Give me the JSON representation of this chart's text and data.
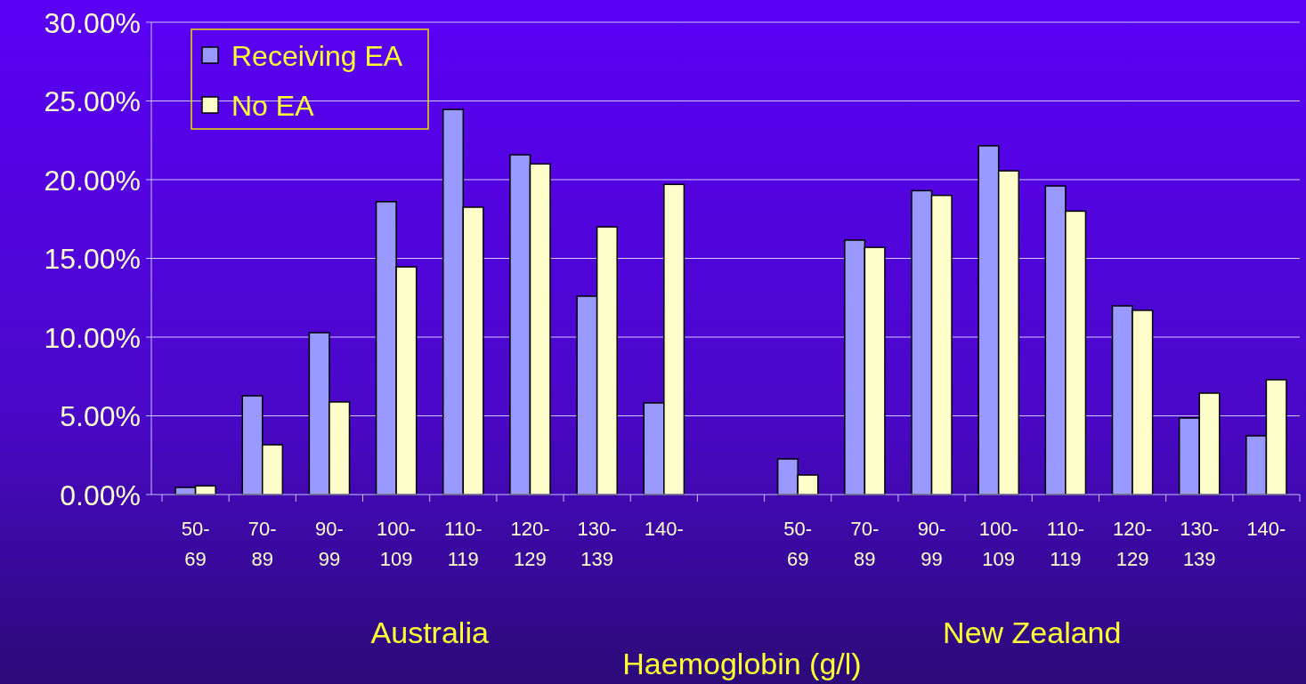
{
  "chart_data": {
    "type": "bar",
    "xlabel": "Haemoglobin (g/l)",
    "categories": [
      "50-69",
      "70-89",
      "90-99",
      "100-109",
      "110-119",
      "120-129",
      "130-139",
      "140-",
      null,
      "50-69",
      "70-89",
      "90-99",
      "100-109",
      "110-119",
      "120-129",
      "130-139",
      "140-"
    ],
    "series": [
      {
        "name": "Receiving EA",
        "color": "#9999ff",
        "values": [
          0.45,
          6.27,
          10.28,
          18.6,
          24.46,
          21.58,
          12.6,
          5.82,
          null,
          2.26,
          16.16,
          19.3,
          22.15,
          19.6,
          11.98,
          4.86,
          3.73
        ]
      },
      {
        "name": "No EA",
        "color": "#ffffcc",
        "values": [
          0.55,
          3.16,
          5.88,
          14.46,
          18.25,
          21.0,
          17.0,
          19.7,
          null,
          1.24,
          15.7,
          19.0,
          20.56,
          18.0,
          11.7,
          6.44,
          7.29
        ]
      }
    ],
    "ylim": [
      0,
      30
    ],
    "yticks": [
      {
        "value": 0,
        "label": "0.00%"
      },
      {
        "value": 5,
        "label": "5.00%"
      },
      {
        "value": 10,
        "label": "10.00%"
      },
      {
        "value": 15,
        "label": "15.00%"
      },
      {
        "value": 20,
        "label": "20.00%"
      },
      {
        "value": 25,
        "label": "25.00%"
      },
      {
        "value": 30,
        "label": "30.00%"
      }
    ],
    "grid": "y",
    "legend": "top left",
    "annotations": [
      "Australia",
      "New Zealand"
    ]
  }
}
